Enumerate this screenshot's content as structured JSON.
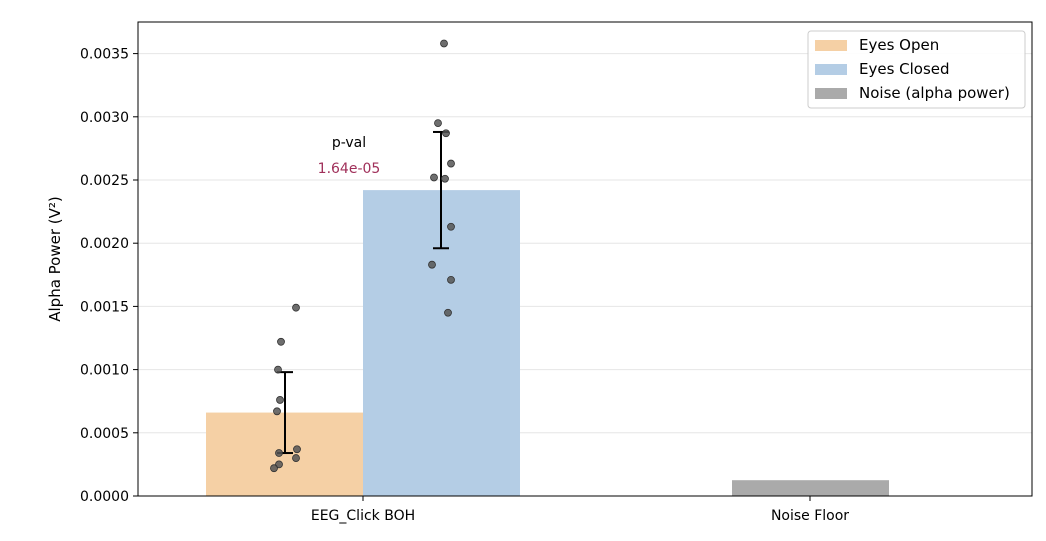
{
  "chart_data": {
    "type": "bar",
    "title": "",
    "xlabel": "",
    "ylabel": "Alpha Power (V²)",
    "ylim": [
      0,
      0.00375
    ],
    "yticks": [
      "0.0000",
      "0.0005",
      "0.0010",
      "0.0015",
      "0.0020",
      "0.0025",
      "0.0030",
      "0.0035"
    ],
    "grid": "horizontal",
    "legend_position": "top-right",
    "categories": [
      "EEG_Click BOH",
      "Noise Floor"
    ],
    "series": [
      {
        "name": "Eyes Open",
        "color": "#f5d0a5",
        "category": "EEG_Click BOH",
        "value": 0.00066,
        "error_low": 0.00034,
        "error_high": 0.00098,
        "points": [
          0.00149,
          0.00122,
          0.001,
          0.00076,
          0.00067,
          0.00037,
          0.00034,
          0.0003,
          0.00025,
          0.00022
        ]
      },
      {
        "name": "Eyes Closed",
        "color": "#b4cde5",
        "category": "EEG_Click BOH",
        "value": 0.00242,
        "error_low": 0.00196,
        "error_high": 0.00288,
        "points": [
          0.00358,
          0.00295,
          0.00287,
          0.00263,
          0.00252,
          0.00251,
          0.00213,
          0.00183,
          0.00171,
          0.00145
        ]
      },
      {
        "name": "Noise (alpha power)",
        "color": "#aaaaaa",
        "category": "Noise Floor",
        "value": 0.000125
      }
    ],
    "annotations": {
      "pval_label": "p-val",
      "pval_value": "1.64e-05",
      "pval_color": "#a0305a"
    },
    "point_color": "#555555"
  }
}
